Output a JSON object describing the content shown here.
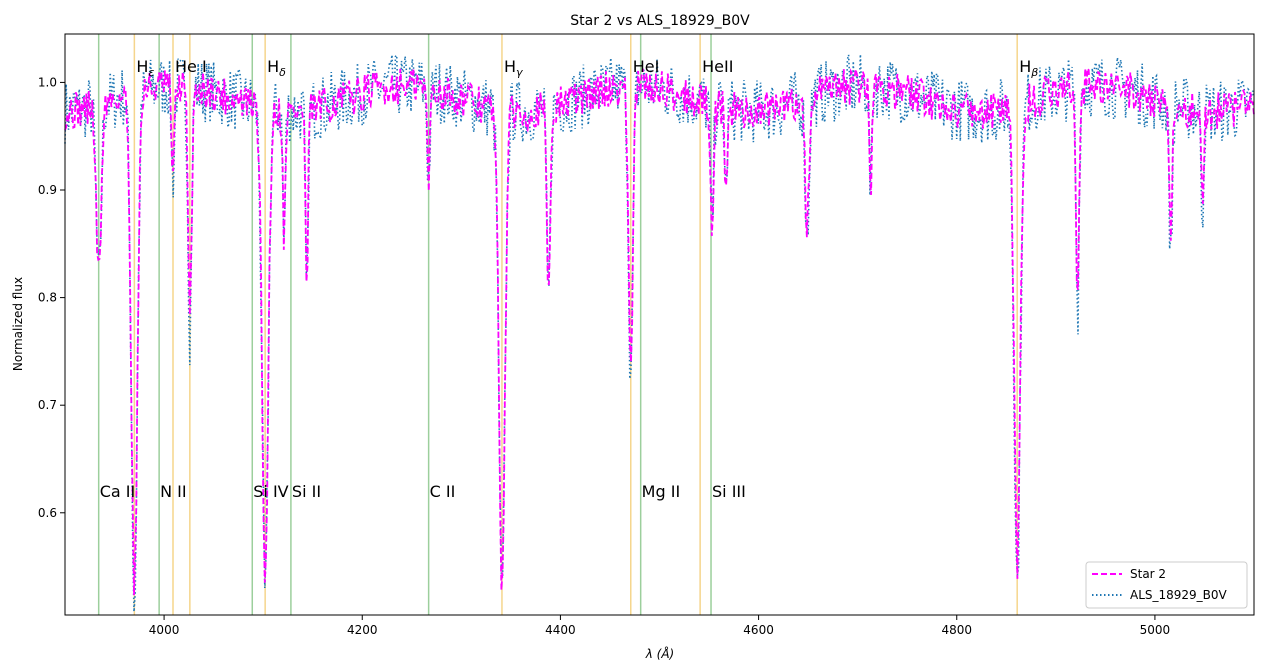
{
  "chart_data": {
    "type": "line",
    "title": "Star 2 vs ALS_18929_B0V",
    "xlabel": "λ (Å)",
    "ylabel": "Normalized flux",
    "xlim": [
      3900,
      5100
    ],
    "ylim": [
      0.505,
      1.045
    ],
    "xticks": [
      4000,
      4200,
      4400,
      4600,
      4800,
      5000
    ],
    "yticks": [
      0.6,
      0.7,
      0.8,
      0.9,
      1.0
    ],
    "grid": false,
    "legend_position": "lower-right",
    "colors": {
      "star2": "#ff00ff",
      "template": "#1f77b4",
      "hydrogen_marker": "#f5d58c",
      "metal_marker": "#9ccf9c"
    },
    "annotations_top": [
      {
        "label": "Hε",
        "base": "H",
        "sub": "ε",
        "x": 3970
      },
      {
        "label": "He I",
        "base": "He I",
        "sub": "",
        "x": 4009
      },
      {
        "label": "Hδ",
        "base": "H",
        "sub": "δ",
        "x": 4102
      },
      {
        "label": "Hγ",
        "base": "H",
        "sub": "γ",
        "x": 4341
      },
      {
        "label": "HeI",
        "base": "HeI",
        "sub": "",
        "x": 4471
      },
      {
        "label": "HeII",
        "base": "HeII",
        "sub": "",
        "x": 4541
      },
      {
        "label": "Hβ",
        "base": "H",
        "sub": "β",
        "x": 4861
      }
    ],
    "annotations_bottom": [
      {
        "label": "Ca II",
        "x": 3934
      },
      {
        "label": "N II",
        "x": 3995
      },
      {
        "label": "Si IV",
        "x": 4089
      },
      {
        "label": "Si II",
        "x": 4128
      },
      {
        "label": "C II",
        "x": 4267
      },
      {
        "label": "Mg II",
        "x": 4481
      },
      {
        "label": "Si III",
        "x": 4552
      }
    ],
    "hydrogen_lines": [
      3970,
      4009,
      4026,
      4102,
      4341,
      4471,
      4541,
      4861
    ],
    "metal_lines": [
      3934,
      3995,
      4089,
      4128,
      4267,
      4481,
      4552
    ],
    "absorption_features": [
      {
        "x": 3934,
        "depth": 0.16,
        "width": 2.5
      },
      {
        "x": 3970,
        "depth": 0.46,
        "width": 3.0
      },
      {
        "x": 4009,
        "depth": 0.08,
        "width": 1.5
      },
      {
        "x": 4026,
        "depth": 0.22,
        "width": 1.8
      },
      {
        "x": 4102,
        "depth": 0.44,
        "width": 3.0
      },
      {
        "x": 4121,
        "depth": 0.12,
        "width": 1.2
      },
      {
        "x": 4144,
        "depth": 0.17,
        "width": 1.3
      },
      {
        "x": 4267,
        "depth": 0.08,
        "width": 1.5
      },
      {
        "x": 4341,
        "depth": 0.44,
        "width": 3.0
      },
      {
        "x": 4388,
        "depth": 0.17,
        "width": 1.8
      },
      {
        "x": 4471,
        "depth": 0.26,
        "width": 2.2
      },
      {
        "x": 4553,
        "depth": 0.11,
        "width": 1.5
      },
      {
        "x": 4567,
        "depth": 0.08,
        "width": 1.2
      },
      {
        "x": 4649,
        "depth": 0.12,
        "width": 2.0
      },
      {
        "x": 4713,
        "depth": 0.1,
        "width": 1.2
      },
      {
        "x": 4861,
        "depth": 0.43,
        "width": 3.0
      },
      {
        "x": 4922,
        "depth": 0.2,
        "width": 1.5
      },
      {
        "x": 5016,
        "depth": 0.14,
        "width": 1.5
      },
      {
        "x": 5048,
        "depth": 0.09,
        "width": 1.2
      }
    ],
    "series": [
      {
        "name": "Star 2",
        "key": "star2",
        "style": "dashed"
      },
      {
        "name": "ALS_18929_B0V",
        "key": "template",
        "style": "dotted"
      }
    ]
  }
}
